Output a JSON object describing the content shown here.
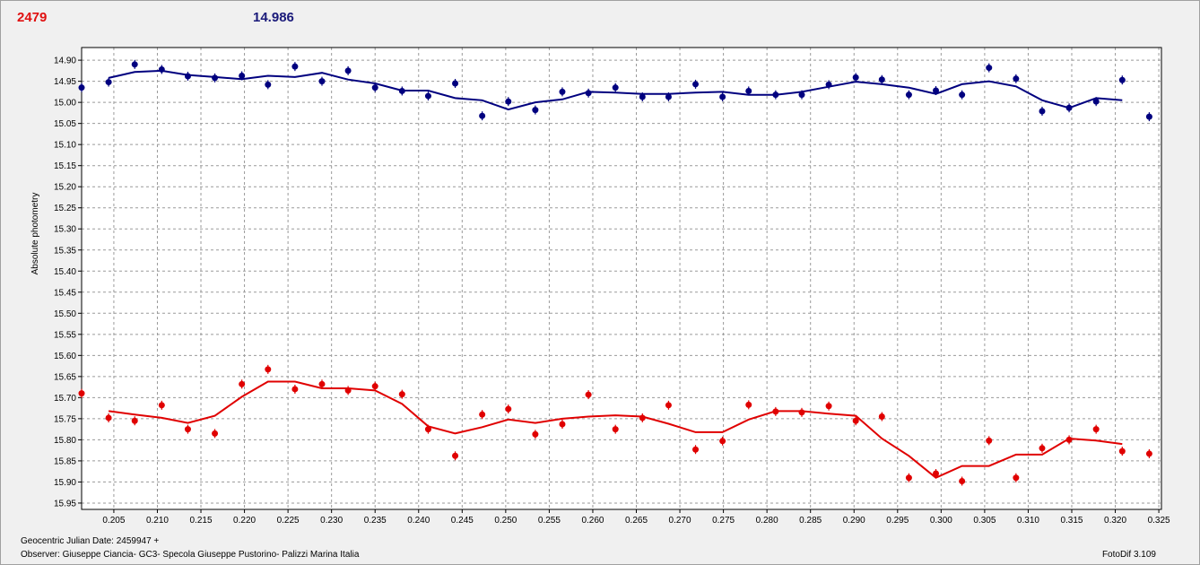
{
  "header": {
    "red_value": "2479",
    "blue_value": "14.986"
  },
  "footer": {
    "date_label": "Geocentric Julian Date: 2459947 +",
    "observer": "Observer: Giuseppe Ciancia- GC3- Specola Giuseppe Pustorino- Palizzi Marina Italia",
    "software": "FotoDif 3.109"
  },
  "chart_data": {
    "type": "scatter",
    "title": "",
    "xlabel": "",
    "ylabel": "Absolute photometry",
    "xlim": [
      0.2013,
      0.3253
    ],
    "ylim": [
      14.87,
      15.965
    ],
    "y_inverted": true,
    "grid": true,
    "x_ticks": [
      "0.205",
      "0.210",
      "0.215",
      "0.220",
      "0.225",
      "0.230",
      "0.235",
      "0.240",
      "0.245",
      "0.250",
      "0.255",
      "0.260",
      "0.265",
      "0.270",
      "0.275",
      "0.280",
      "0.285",
      "0.290",
      "0.295",
      "0.300",
      "0.305",
      "0.310",
      "0.315",
      "0.320",
      "0.325"
    ],
    "y_ticks": [
      "14.90",
      "14.95",
      "15.00",
      "15.05",
      "15.10",
      "15.15",
      "15.20",
      "15.25",
      "15.30",
      "15.35",
      "15.40",
      "15.45",
      "15.50",
      "15.55",
      "15.60",
      "15.65",
      "15.70",
      "15.75",
      "15.80",
      "15.85",
      "15.90",
      "15.95"
    ],
    "series": [
      {
        "color": "#00007f",
        "marker": "dot",
        "points": [
          [
            0.2013,
            14.965
          ],
          [
            0.2044,
            14.952
          ],
          [
            0.2074,
            14.91
          ],
          [
            0.2105,
            14.922
          ],
          [
            0.2135,
            14.938
          ],
          [
            0.2166,
            14.942
          ],
          [
            0.2197,
            14.937
          ],
          [
            0.2227,
            14.958
          ],
          [
            0.2258,
            14.915
          ],
          [
            0.2289,
            14.95
          ],
          [
            0.2319,
            14.925
          ],
          [
            0.235,
            14.965
          ],
          [
            0.2381,
            14.973
          ],
          [
            0.2411,
            14.985
          ],
          [
            0.2442,
            14.955
          ],
          [
            0.2473,
            15.032
          ],
          [
            0.2503,
            14.998
          ],
          [
            0.2534,
            15.018
          ],
          [
            0.2565,
            14.975
          ],
          [
            0.2595,
            14.978
          ],
          [
            0.2626,
            14.965
          ],
          [
            0.2657,
            14.987
          ],
          [
            0.2687,
            14.987
          ],
          [
            0.2718,
            14.957
          ],
          [
            0.2749,
            14.987
          ],
          [
            0.2779,
            14.973
          ],
          [
            0.281,
            14.982
          ],
          [
            0.284,
            14.982
          ],
          [
            0.2871,
            14.958
          ],
          [
            0.2902,
            14.941
          ],
          [
            0.2932,
            14.946
          ],
          [
            0.2963,
            14.982
          ],
          [
            0.2994,
            14.972
          ],
          [
            0.3024,
            14.982
          ],
          [
            0.3055,
            14.918
          ],
          [
            0.3086,
            14.944
          ],
          [
            0.3116,
            15.021
          ],
          [
            0.3147,
            15.013
          ],
          [
            0.3178,
            14.998
          ],
          [
            0.3208,
            14.947
          ],
          [
            0.3239,
            15.034
          ]
        ],
        "trend": [
          [
            0.2044,
            14.942
          ],
          [
            0.2074,
            14.928
          ],
          [
            0.2105,
            14.925
          ],
          [
            0.2135,
            14.935
          ],
          [
            0.2166,
            14.94
          ],
          [
            0.2197,
            14.945
          ],
          [
            0.2227,
            14.937
          ],
          [
            0.2258,
            14.94
          ],
          [
            0.2289,
            14.93
          ],
          [
            0.2319,
            14.946
          ],
          [
            0.235,
            14.955
          ],
          [
            0.2381,
            14.972
          ],
          [
            0.2411,
            14.972
          ],
          [
            0.2442,
            14.99
          ],
          [
            0.2473,
            14.995
          ],
          [
            0.2503,
            15.017
          ],
          [
            0.2534,
            15.0
          ],
          [
            0.2565,
            14.993
          ],
          [
            0.2595,
            14.975
          ],
          [
            0.2626,
            14.977
          ],
          [
            0.2657,
            14.98
          ],
          [
            0.2687,
            14.98
          ],
          [
            0.2718,
            14.977
          ],
          [
            0.2749,
            14.975
          ],
          [
            0.2779,
            14.982
          ],
          [
            0.281,
            14.982
          ],
          [
            0.284,
            14.975
          ],
          [
            0.2871,
            14.963
          ],
          [
            0.2902,
            14.951
          ],
          [
            0.2932,
            14.957
          ],
          [
            0.2963,
            14.965
          ],
          [
            0.2994,
            14.98
          ],
          [
            0.3024,
            14.957
          ],
          [
            0.3055,
            14.95
          ],
          [
            0.3086,
            14.962
          ],
          [
            0.3116,
            14.995
          ],
          [
            0.3147,
            15.013
          ],
          [
            0.3178,
            14.99
          ],
          [
            0.3208,
            14.995
          ]
        ]
      },
      {
        "color": "#e00000",
        "marker": "dot",
        "points": [
          [
            0.2013,
            15.69
          ],
          [
            0.2044,
            15.748
          ],
          [
            0.2074,
            15.755
          ],
          [
            0.2105,
            15.718
          ],
          [
            0.2135,
            15.775
          ],
          [
            0.2166,
            15.785
          ],
          [
            0.2197,
            15.668
          ],
          [
            0.2227,
            15.633
          ],
          [
            0.2258,
            15.68
          ],
          [
            0.2289,
            15.668
          ],
          [
            0.2319,
            15.683
          ],
          [
            0.235,
            15.673
          ],
          [
            0.2381,
            15.692
          ],
          [
            0.2411,
            15.775
          ],
          [
            0.2442,
            15.838
          ],
          [
            0.2473,
            15.74
          ],
          [
            0.2503,
            15.727
          ],
          [
            0.2534,
            15.787
          ],
          [
            0.2565,
            15.763
          ],
          [
            0.2595,
            15.693
          ],
          [
            0.2626,
            15.775
          ],
          [
            0.2657,
            15.748
          ],
          [
            0.2687,
            15.718
          ],
          [
            0.2718,
            15.823
          ],
          [
            0.2749,
            15.803
          ],
          [
            0.2779,
            15.717
          ],
          [
            0.281,
            15.733
          ],
          [
            0.284,
            15.735
          ],
          [
            0.2871,
            15.72
          ],
          [
            0.2902,
            15.755
          ],
          [
            0.2932,
            15.745
          ],
          [
            0.2963,
            15.89
          ],
          [
            0.2994,
            15.88
          ],
          [
            0.3024,
            15.898
          ],
          [
            0.3055,
            15.802
          ],
          [
            0.3086,
            15.89
          ],
          [
            0.3116,
            15.82
          ],
          [
            0.3147,
            15.8
          ],
          [
            0.3178,
            15.775
          ],
          [
            0.3208,
            15.827
          ],
          [
            0.3239,
            15.833
          ]
        ],
        "trend": [
          [
            0.2044,
            15.732
          ],
          [
            0.2074,
            15.74
          ],
          [
            0.2105,
            15.748
          ],
          [
            0.2135,
            15.76
          ],
          [
            0.2166,
            15.743
          ],
          [
            0.2197,
            15.698
          ],
          [
            0.2227,
            15.662
          ],
          [
            0.2258,
            15.662
          ],
          [
            0.2289,
            15.678
          ],
          [
            0.2319,
            15.678
          ],
          [
            0.235,
            15.683
          ],
          [
            0.2381,
            15.715
          ],
          [
            0.2411,
            15.768
          ],
          [
            0.2442,
            15.785
          ],
          [
            0.2473,
            15.77
          ],
          [
            0.2503,
            15.752
          ],
          [
            0.2534,
            15.76
          ],
          [
            0.2565,
            15.75
          ],
          [
            0.2595,
            15.745
          ],
          [
            0.2626,
            15.742
          ],
          [
            0.2657,
            15.745
          ],
          [
            0.2687,
            15.762
          ],
          [
            0.2718,
            15.782
          ],
          [
            0.2749,
            15.782
          ],
          [
            0.2779,
            15.752
          ],
          [
            0.281,
            15.732
          ],
          [
            0.284,
            15.732
          ],
          [
            0.2871,
            15.738
          ],
          [
            0.2902,
            15.743
          ],
          [
            0.2932,
            15.797
          ],
          [
            0.2963,
            15.838
          ],
          [
            0.2994,
            15.89
          ],
          [
            0.3024,
            15.862
          ],
          [
            0.3055,
            15.862
          ],
          [
            0.3086,
            15.835
          ],
          [
            0.3116,
            15.835
          ],
          [
            0.3147,
            15.797
          ],
          [
            0.3178,
            15.802
          ],
          [
            0.3208,
            15.81
          ]
        ]
      }
    ]
  }
}
